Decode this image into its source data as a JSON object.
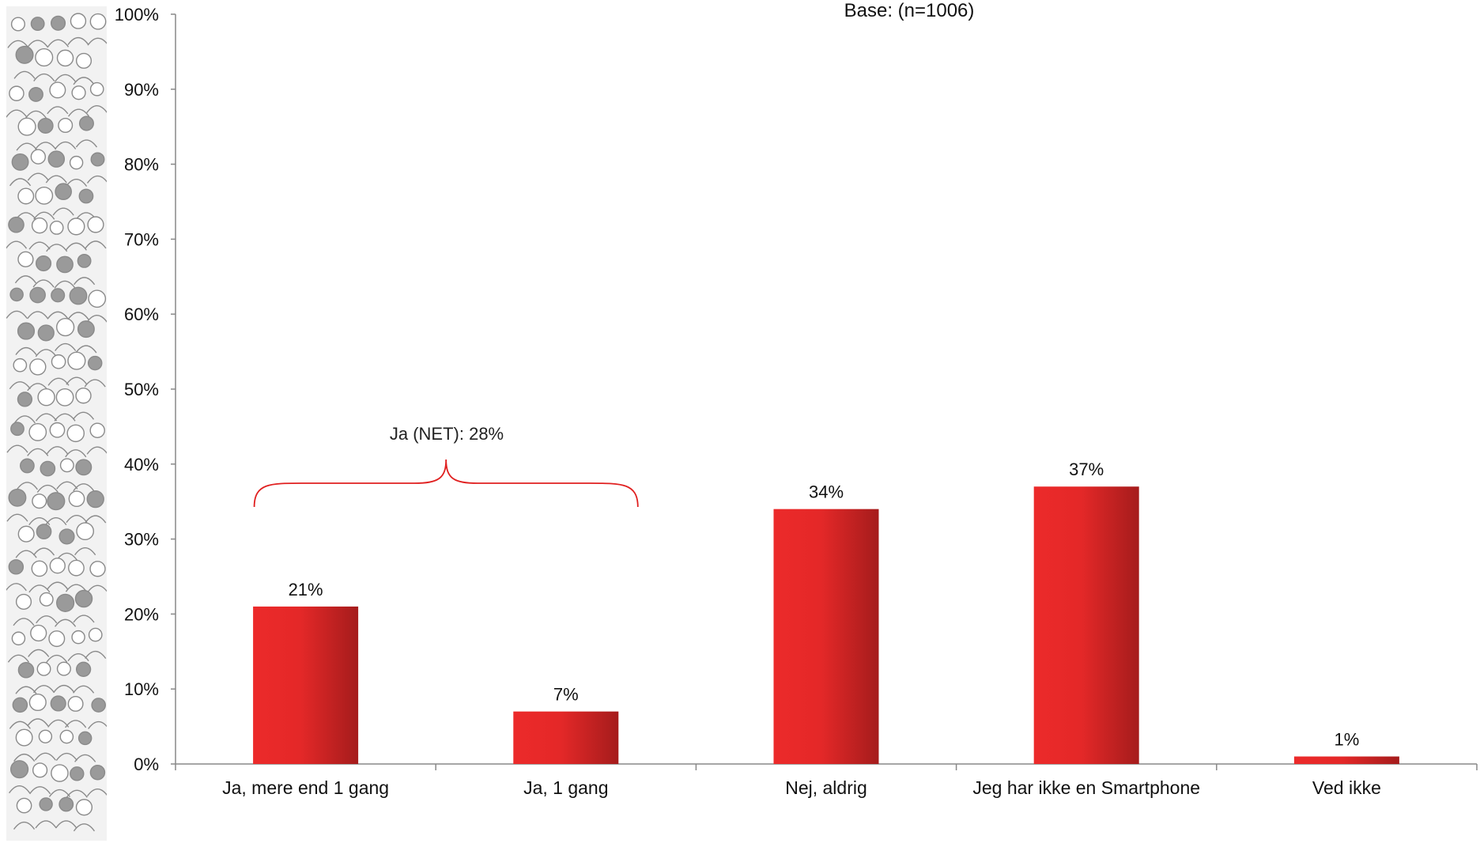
{
  "chart_data": {
    "type": "bar",
    "annotations": {
      "base": "Base: (n=1006)",
      "net_label": "Ja (NET): 28%"
    },
    "categories": [
      "Ja, mere end 1 gang",
      "Ja, 1 gang",
      "Nej, aldrig",
      "Jeg har ikke en Smartphone",
      "Ved ikke"
    ],
    "values": [
      21,
      7,
      34,
      37,
      1
    ],
    "value_labels": [
      "21%",
      "7%",
      "34%",
      "37%",
      "1%"
    ],
    "yticks": [
      "0%",
      "10%",
      "20%",
      "30%",
      "40%",
      "50%",
      "60%",
      "70%",
      "80%",
      "90%",
      "100%"
    ],
    "ylim": [
      0,
      100
    ],
    "grid": false,
    "colors": {
      "bar_light": "#ec2a2a",
      "bar_dark": "#a51c1c",
      "bracket": "#e02020",
      "axis": "#888888"
    }
  }
}
